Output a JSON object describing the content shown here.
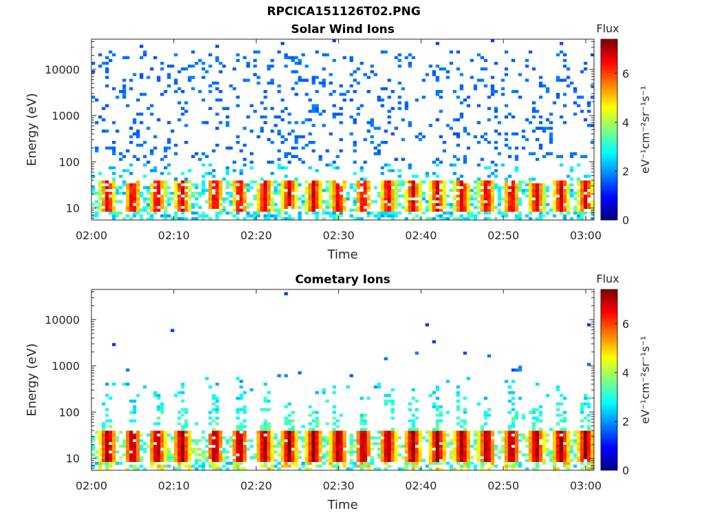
{
  "figure": {
    "title": "RPCICA151126T02.PNG"
  },
  "chart_data": [
    {
      "type": "heatmap",
      "title": "Solar Wind Ions",
      "xlabel": "Time",
      "ylabel": "Energy (eV)",
      "xlim": [
        "02:00",
        "03:01"
      ],
      "x_ticks": [
        "02:00",
        "02:10",
        "02:20",
        "02:30",
        "02:40",
        "02:50",
        "03:00"
      ],
      "ylim": [
        5.5,
        45000
      ],
      "y_scale": "log",
      "y_ticks": [
        "10",
        "100",
        "1000",
        "10000"
      ],
      "colorbar": {
        "label": "Flux",
        "unit": "eV⁻¹cm⁻²sr⁻¹s⁻¹",
        "range": [
          0,
          7.4
        ],
        "ticks": [
          "0",
          "2",
          "4",
          "6"
        ],
        "colormap": "jet"
      },
      "features": {
        "core_energy_range_eV": [
          9,
          40
        ],
        "core_peak_flux": 6.5,
        "pulse_period_min": 3.1,
        "pulse_centers": [
          "02:02",
          "02:05",
          "02:08",
          "02:11",
          "02:15",
          "02:18",
          "02:21",
          "02:24",
          "02:27",
          "02:30",
          "02:33",
          "02:36",
          "02:39",
          "02:42",
          "02:45",
          "02:48",
          "02:51",
          "02:54",
          "02:57",
          "03:00"
        ],
        "sparse_background_energy_range_eV": [
          100,
          25000
        ],
        "sparse_background_flux": 1.5
      }
    },
    {
      "type": "heatmap",
      "title": "Cometary Ions",
      "xlabel": "Time",
      "ylabel": "Energy (eV)",
      "xlim": [
        "02:00",
        "03:01"
      ],
      "x_ticks": [
        "02:00",
        "02:10",
        "02:20",
        "02:30",
        "02:40",
        "02:50",
        "03:00"
      ],
      "ylim": [
        5.5,
        45000
      ],
      "y_scale": "log",
      "y_ticks": [
        "10",
        "100",
        "1000",
        "10000"
      ],
      "colorbar": {
        "label": "Flux",
        "unit": "eV⁻¹cm⁻²sr⁻¹s⁻¹",
        "range": [
          0,
          7.4
        ],
        "ticks": [
          "0",
          "2",
          "4",
          "6"
        ],
        "colormap": "jet"
      },
      "features": {
        "core_energy_range_eV": [
          8,
          42
        ],
        "core_peak_flux": 7.0,
        "pulse_period_min": 3.1,
        "pulse_centers": [
          "02:02",
          "02:05",
          "02:08",
          "02:11",
          "02:15",
          "02:18",
          "02:21",
          "02:24",
          "02:27",
          "02:30",
          "02:33",
          "02:36",
          "02:39",
          "02:42",
          "02:45",
          "02:48",
          "02:51",
          "02:54",
          "02:57",
          "03:00"
        ],
        "spike_energy_range_eV": [
          40,
          600
        ],
        "spike_flux": 2.8,
        "isolated_high_energy_points_eV": [
          1000,
          12000
        ]
      }
    }
  ]
}
